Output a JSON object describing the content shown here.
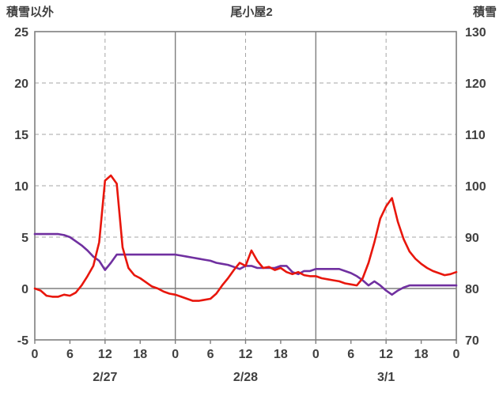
{
  "chart_data": {
    "type": "line",
    "title": "尾小屋2",
    "left_axis_label": "積雪以外",
    "right_axis_label": "積雪",
    "x_range": [
      0,
      72
    ],
    "x_step_hours": 1,
    "left_ylim": [
      -5,
      25
    ],
    "right_ylim": [
      70,
      130
    ],
    "left_ticks": [
      25,
      20,
      15,
      10,
      5,
      0,
      -5
    ],
    "right_ticks": [
      130,
      120,
      110,
      100,
      90,
      80,
      70
    ],
    "x_tick_positions": [
      0,
      6,
      12,
      18,
      24,
      30,
      36,
      42,
      48,
      54,
      60,
      66,
      72
    ],
    "x_tick_labels": [
      "0",
      "6",
      "12",
      "18",
      "0",
      "6",
      "12",
      "18",
      "0",
      "6",
      "12",
      "18",
      "0"
    ],
    "date_labels": [
      {
        "label": "2/27",
        "x": 12
      },
      {
        "label": "2/28",
        "x": 36
      },
      {
        "label": "3/1",
        "x": 60
      }
    ],
    "grid": {
      "h_dashed_left_values": [
        20,
        15,
        10,
        5
      ],
      "v_dashed_x": [
        12,
        36,
        60
      ],
      "v_solid_x": [
        24,
        48
      ],
      "zero_line_left_value": 0,
      "grid_on": true
    },
    "legend_position": "none",
    "series": [
      {
        "name": "積雪",
        "axis": "right",
        "color": "#7030a0",
        "values": [
          90.6,
          90.6,
          90.6,
          90.6,
          90.6,
          90.4,
          90.0,
          89.2,
          88.4,
          87.4,
          86.2,
          85.4,
          83.6,
          85.0,
          86.6,
          86.6,
          86.6,
          86.6,
          86.6,
          86.6,
          86.6,
          86.6,
          86.6,
          86.6,
          86.6,
          86.4,
          86.2,
          86.0,
          85.8,
          85.6,
          85.4,
          85.0,
          84.8,
          84.6,
          84.2,
          83.8,
          84.4,
          84.4,
          84.0,
          84.0,
          84.0,
          84.0,
          84.4,
          84.4,
          83.2,
          82.8,
          83.4,
          83.4,
          83.8,
          83.8,
          83.8,
          83.8,
          83.8,
          83.4,
          83.0,
          82.4,
          81.6,
          80.6,
          81.4,
          80.6,
          79.6,
          78.8,
          79.6,
          80.2,
          80.6,
          80.6,
          80.6,
          80.6,
          80.6,
          80.6,
          80.6,
          80.6,
          80.6
        ]
      },
      {
        "name": "積雪以外",
        "axis": "left",
        "color": "#e8160c",
        "values": [
          0.0,
          -0.2,
          -0.7,
          -0.8,
          -0.8,
          -0.6,
          -0.7,
          -0.4,
          0.3,
          1.2,
          2.2,
          4.5,
          10.5,
          11.0,
          10.2,
          4.0,
          2.0,
          1.3,
          1.0,
          0.6,
          0.2,
          0.0,
          -0.3,
          -0.5,
          -0.6,
          -0.8,
          -1.0,
          -1.2,
          -1.2,
          -1.1,
          -1.0,
          -0.5,
          0.3,
          1.0,
          1.8,
          2.5,
          2.2,
          3.7,
          2.7,
          2.0,
          2.1,
          1.8,
          2.0,
          1.6,
          1.4,
          1.6,
          1.3,
          1.2,
          1.2,
          1.0,
          0.9,
          0.8,
          0.7,
          0.5,
          0.4,
          0.3,
          1.0,
          2.5,
          4.5,
          6.8,
          8.0,
          8.8,
          6.5,
          4.8,
          3.6,
          2.9,
          2.4,
          2.0,
          1.7,
          1.5,
          1.3,
          1.4,
          1.6
        ]
      }
    ],
    "colors": {
      "text": "#404040",
      "grid_dashed": "#a6a6a6",
      "grid_solid": "#7f7f7f",
      "border": "#7f7f7f",
      "background": "#ffffff"
    }
  }
}
